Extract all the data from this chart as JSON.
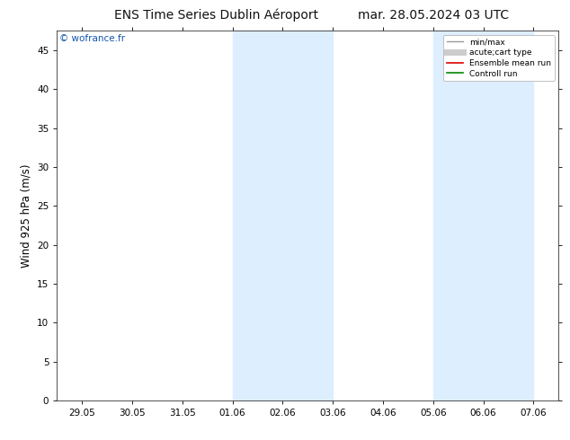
{
  "title_left": "ENS Time Series Dublin Aéroport",
  "title_right": "mar. 28.05.2024 03 UTC",
  "ylabel": "Wind 925 hPa (m/s)",
  "watermark": "© wofrance.fr",
  "ylim": [
    0,
    47.5
  ],
  "yticks": [
    0,
    5,
    10,
    15,
    20,
    25,
    30,
    35,
    40,
    45
  ],
  "xtick_labels": [
    "29.05",
    "30.05",
    "31.05",
    "01.06",
    "02.06",
    "03.06",
    "04.06",
    "05.06",
    "06.06",
    "07.06"
  ],
  "xtick_positions": [
    0,
    1,
    2,
    3,
    4,
    5,
    6,
    7,
    8,
    9
  ],
  "shade_regions": [
    [
      3.0,
      4.0
    ],
    [
      4.0,
      5.0
    ],
    [
      7.0,
      8.0
    ],
    [
      8.0,
      9.0
    ]
  ],
  "shade_color": "#ddeeff",
  "background_color": "#ffffff",
  "plot_bg_color": "#ffffff",
  "legend_items": [
    {
      "label": "min/max",
      "color": "#999999",
      "lw": 1.0,
      "ls": "-"
    },
    {
      "label": "acute;cart type",
      "color": "#cccccc",
      "lw": 5,
      "ls": "-"
    },
    {
      "label": "Ensemble mean run",
      "color": "#dd0000",
      "lw": 1.2,
      "ls": "-"
    },
    {
      "label": "Controll run",
      "color": "#008800",
      "lw": 1.2,
      "ls": "-"
    }
  ],
  "title_fontsize": 10,
  "tick_fontsize": 7.5,
  "ylabel_fontsize": 8.5,
  "watermark_color": "#1155aa"
}
